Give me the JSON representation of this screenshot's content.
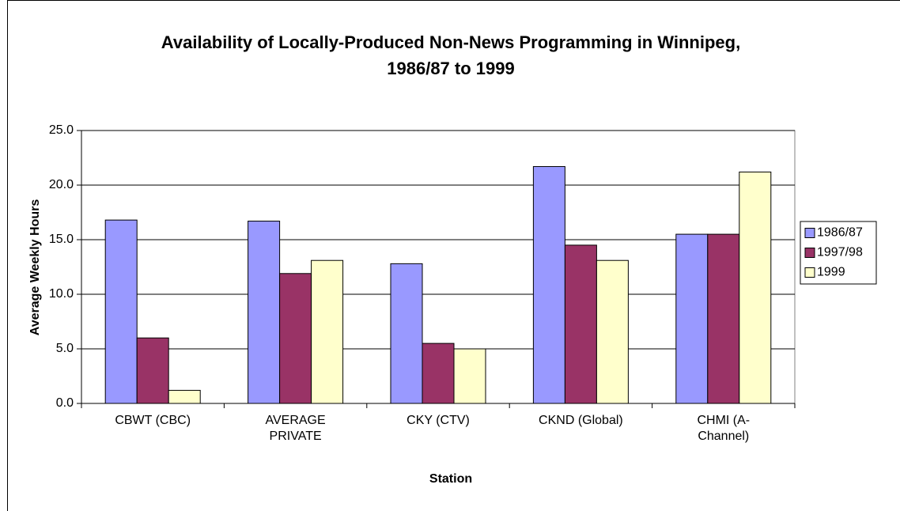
{
  "chart_data": {
    "type": "bar",
    "title": "Availability of Locally-Produced Non-News Programming in Winnipeg, 1986/87 to 1999",
    "x_label": "Station",
    "y_label": "Average Weekly Hours",
    "categories": [
      "CBWT (CBC)",
      "AVERAGE PRIVATE",
      "CKY (CTV)",
      "CKND (Global)",
      "CHMI (A-Channel)"
    ],
    "series": [
      {
        "name": "1986/87",
        "color": "#9999ff",
        "values": [
          16.8,
          16.7,
          12.8,
          21.7,
          15.5
        ]
      },
      {
        "name": "1997/98",
        "color": "#993366",
        "values": [
          6.0,
          11.9,
          5.5,
          14.5,
          15.5
        ]
      },
      {
        "name": "1999",
        "color": "#ffffcc",
        "values": [
          1.2,
          13.1,
          5.0,
          13.1,
          21.2
        ]
      }
    ],
    "ylim": [
      0,
      25
    ],
    "yticks": [
      {
        "value": 0,
        "label": "0.0"
      },
      {
        "value": 5,
        "label": "5.0"
      },
      {
        "value": 10,
        "label": "10.0"
      },
      {
        "value": 15,
        "label": "15.0"
      },
      {
        "value": 20,
        "label": "20.0"
      },
      {
        "value": 25,
        "label": "25.0"
      }
    ],
    "grid": true,
    "legend": "right"
  }
}
